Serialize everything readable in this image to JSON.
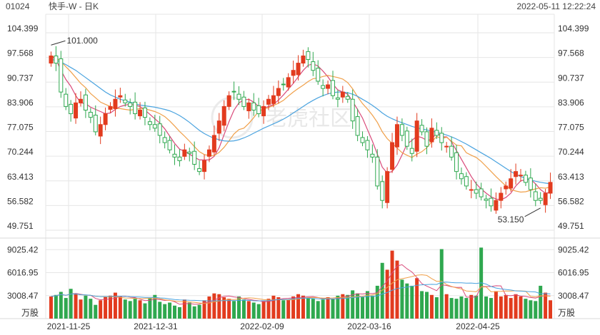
{
  "header": {
    "symbol": "01024",
    "title": "快手-W - 日K",
    "datetime": "2022-05-11 12:22:24"
  },
  "watermark": {
    "text": "老虎社区"
  },
  "colors": {
    "up": "#e23b1e",
    "down": "#2fa84f",
    "ma5": "#d94a7a",
    "ma10": "#f0a04a",
    "ma20": "#4aa3df",
    "grid": "#e6e6e6"
  },
  "chart_data": [
    {
      "type": "candlestick",
      "title": "快手-W - 日K",
      "y_ticks": [
        "104.399",
        "97.568",
        "90.737",
        "83.906",
        "77.075",
        "70.244",
        "63.413",
        "56.582",
        "49.751"
      ],
      "ylim": [
        49.751,
        104.399
      ],
      "x_ticks": [
        "2021-11-25",
        "2021-12-31",
        "2022-02-09",
        "2022-03-16",
        "2022-04-25"
      ],
      "annotations": [
        {
          "text": "101.000",
          "value": 101.0,
          "at": "high"
        },
        {
          "text": "53.150",
          "value": 53.15,
          "at": "low"
        }
      ],
      "close": [
        98.0,
        96.0,
        88.0,
        84.0,
        82.0,
        85.0,
        86.0,
        83.0,
        81.0,
        77.0,
        79.0,
        82.0,
        84.0,
        86.0,
        87.0,
        85.0,
        84.0,
        82.0,
        83.0,
        81.0,
        79.0,
        78.0,
        76.0,
        74.0,
        72.0,
        70.0,
        69.0,
        72.0,
        71.0,
        68.0,
        66.0,
        69.0,
        72.0,
        76.0,
        80.0,
        84.0,
        87.0,
        88.0,
        86.0,
        84.0,
        85.0,
        83.0,
        82.0,
        84.0,
        86.0,
        87.0,
        89.0,
        90.0,
        92.0,
        94.0,
        96.0,
        98.0,
        97.0,
        94.0,
        91.0,
        89.0,
        90.0,
        87.0,
        86.0,
        88.0,
        86.0,
        80.0,
        76.0,
        74.0,
        72.0,
        70.0,
        62.0,
        58.0,
        66.0,
        74.0,
        79.0,
        76.0,
        73.0,
        71.0,
        80.0,
        77.0,
        73.0,
        78.0,
        76.0,
        74.0,
        73.0,
        70.0,
        66.0,
        64.0,
        62.0,
        61.0,
        60.0,
        59.0,
        58.0,
        56.5,
        58.0,
        60.0,
        62.0,
        64.0,
        66.0,
        65.0,
        63.0,
        61.0,
        58.0,
        58.0,
        60.0,
        63.0
      ],
      "volume": [
        2900,
        3100,
        3500,
        2700,
        3900,
        3300,
        2500,
        3000,
        2600,
        1800,
        2400,
        2900,
        3000,
        3400,
        2900,
        2500,
        2300,
        2600,
        2400,
        2000,
        2700,
        3100,
        2200,
        1900,
        2100,
        1700,
        1500,
        2500,
        2100,
        1600,
        1800,
        2400,
        2900,
        3300,
        3200,
        2800,
        2600,
        2300,
        2900,
        2500,
        2300,
        2100,
        1900,
        2300,
        2600,
        3000,
        2800,
        2400,
        2500,
        2900,
        3200,
        3000,
        2700,
        2600,
        2300,
        2500,
        2800,
        2600,
        3000,
        3200,
        3100,
        3700,
        3300,
        2800,
        3600,
        3000,
        4300,
        7300,
        6400,
        8900,
        7600,
        5100,
        4600,
        4300,
        5300,
        3600,
        3500,
        3100,
        2800,
        9100,
        3200,
        2700,
        2600,
        2900,
        2700,
        3100,
        3000,
        9300,
        2900,
        2700,
        3600,
        2900,
        3100,
        2700,
        3200,
        2900,
        2600,
        2400,
        2300,
        4300,
        3400,
        2400
      ],
      "volume_y_ticks": [
        "9025.42",
        "6016.95",
        "3008.47"
      ],
      "volume_unit": "万股",
      "ma_series": [
        {
          "values": [
            98,
            97,
            94,
            91.5,
            89.6,
            87,
            85,
            84.8,
            83.8,
            83.2,
            82.6,
            82.0,
            82.2,
            83.2,
            84.0,
            84.4,
            84.6,
            84.4,
            84.0,
            83.0,
            81.8,
            80.6,
            79.4,
            77.8,
            75.8,
            73.8,
            72.2,
            71.6,
            70.8,
            70.0,
            69.2,
            69.2,
            69.2,
            70.2,
            72.6,
            76.2,
            79.8,
            83.0,
            85.0,
            85.8,
            86.0,
            85.2,
            84.0,
            83.6,
            84.0,
            84.6,
            85.8,
            87.2,
            88.8,
            90.4,
            92.2,
            94.0,
            95.4,
            95.8,
            95.2,
            93.8,
            92.2,
            90.2,
            88.6,
            88.0,
            87.4,
            85.4,
            83.2,
            80.8,
            77.6,
            74.4,
            70.8,
            67.2,
            65.6,
            66.0,
            67.8,
            70.6,
            73.6,
            74.6,
            75.8,
            75.4,
            74.6,
            74.8,
            76.8,
            75.6,
            75.6,
            74.2,
            71.8,
            69.4,
            67.0,
            64.6,
            62.6,
            61.2,
            60.0,
            59.0,
            58.4,
            58.2,
            58.8,
            60.0,
            62.0,
            63.4,
            63.8,
            63.8,
            62.6,
            61.0,
            60.0,
            60.2
          ]
        },
        {
          "values": [
            98,
            97.5,
            96.5,
            95,
            93.6,
            92,
            90.4,
            89.2,
            87.6,
            86.4,
            85.2,
            84.6,
            84.0,
            83.5,
            83.4,
            83.2,
            83.0,
            83.2,
            83.4,
            83.3,
            83.0,
            82.6,
            82.0,
            81.2,
            80.0,
            78.6,
            77.1,
            75.8,
            74.4,
            72.9,
            71.5,
            70.7,
            70.4,
            70.4,
            71.3,
            72.7,
            74.5,
            76.4,
            77.6,
            78.0,
            79.3,
            80.9,
            82.7,
            83.3,
            83.7,
            84.3,
            84.9,
            85.7,
            86.9,
            88.0,
            89.0,
            89.9,
            90.9,
            91.7,
            91.9,
            92.3,
            92.6,
            92.3,
            92.0,
            91.6,
            90.6,
            88.9,
            86.7,
            84.8,
            83.3,
            81.6,
            79.6,
            77.0,
            75.1,
            73.8,
            72.5,
            71.2,
            70.5,
            69.9,
            70.8,
            71.5,
            72.6,
            74.2,
            75.7,
            75.1,
            75.5,
            74.4,
            73.3,
            73.1,
            71.2,
            70.5,
            69.9,
            68.8,
            67.4,
            66.0,
            64.6,
            63.3,
            62.0,
            61.0,
            60.6,
            60.3,
            60.4,
            60.8,
            61.2,
            61.5,
            61.4,
            61.7
          ]
        },
        {
          "values": [
            97,
            96.8,
            96.3,
            95.6,
            94.8,
            94.0,
            93.0,
            92.0,
            91.0,
            90.0,
            89.0,
            88.0,
            87.2,
            86.6,
            86.0,
            85.6,
            85.2,
            84.8,
            84.4,
            84.2,
            84.0,
            83.8,
            83.5,
            83.2,
            82.8,
            82.2,
            81.5,
            80.6,
            79.6,
            78.5,
            77.4,
            76.5,
            75.8,
            75.2,
            74.8,
            74.5,
            74.4,
            74.5,
            74.8,
            75.3,
            75.9,
            76.6,
            77.3,
            78.0,
            78.6,
            79.2,
            79.8,
            80.5,
            81.3,
            82.2,
            83.1,
            84.0,
            84.9,
            85.7,
            86.4,
            87.0,
            87.5,
            87.8,
            88.0,
            88.0,
            87.8,
            87.4,
            86.8,
            86.0,
            85.2,
            84.3,
            83.3,
            82.2,
            81.3,
            80.6,
            80.0,
            79.5,
            79.0,
            78.5,
            78.1,
            77.8,
            77.5,
            77.2,
            76.9,
            76.5,
            76.1,
            75.6,
            75.0,
            74.3,
            73.6,
            72.8,
            72.0,
            71.2,
            70.4,
            69.6,
            68.7,
            67.8,
            66.9,
            66.0,
            65.2,
            64.6,
            64.1,
            63.7,
            63.3,
            63.0,
            62.8,
            62.6
          ]
        }
      ]
    }
  ]
}
